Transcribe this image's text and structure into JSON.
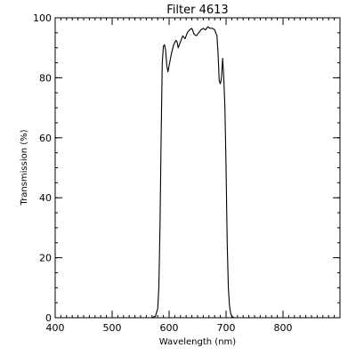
{
  "chart_data": {
    "type": "line",
    "title": "Filter 4613",
    "xlabel": "Wavelength (nm)",
    "ylabel": "Transmission (%)",
    "xlim": [
      400,
      900
    ],
    "ylim": [
      0,
      100
    ],
    "x_ticks": [
      400,
      500,
      600,
      700,
      800
    ],
    "y_ticks": [
      0,
      20,
      40,
      60,
      80,
      100
    ],
    "x_minor_step": 10,
    "y_minor_step": 5,
    "grid": false,
    "line_color": "#000000",
    "series": [
      {
        "x": [
          400,
          570,
          576,
          580,
          582,
          584,
          586,
          588,
          590,
          592,
          594,
          596,
          598,
          600,
          604,
          608,
          612,
          614,
          616,
          620,
          624,
          628,
          632,
          636,
          640,
          644,
          648,
          652,
          656,
          660,
          664,
          668,
          672,
          676,
          680,
          684,
          686,
          688,
          690,
          692,
          694,
          696,
          698,
          700,
          702,
          704,
          706,
          708,
          710,
          714,
          720,
          900
        ],
        "y": [
          0,
          0,
          0.5,
          3,
          10,
          30,
          60,
          85,
          90.5,
          91,
          89,
          84,
          82,
          84,
          88,
          91,
          92.5,
          92,
          90,
          92,
          94,
          93,
          95,
          96,
          96.5,
          94.5,
          94,
          95,
          96,
          96.5,
          96,
          97,
          96.5,
          96.5,
          96,
          94,
          88,
          79,
          78,
          80,
          86.5,
          80,
          70,
          50,
          25,
          10,
          4,
          1.5,
          0.5,
          0,
          0,
          0
        ]
      }
    ]
  }
}
